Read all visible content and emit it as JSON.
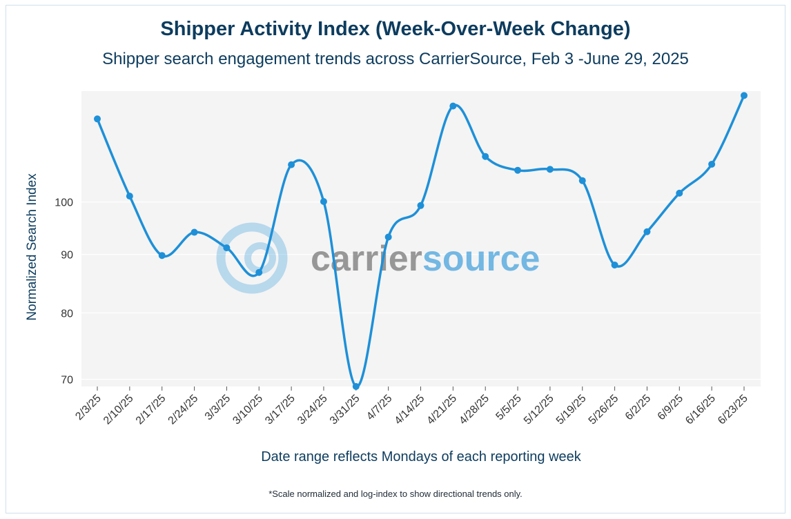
{
  "chart_data": {
    "type": "line",
    "title": "Shipper Activity Index (Week-Over-Week Change)",
    "subtitle": "Shipper search engagement trends across CarrierSource, Feb 3 -June 29, 2025",
    "xlabel": "Date range reflects Mondays of each reporting week",
    "ylabel": "Normalized Search Index",
    "footnote": "*Scale normalized and log-index to show directional trends only.",
    "y_scale": "log",
    "ylim": [
      69,
      125
    ],
    "y_ticks": [
      70,
      80,
      90,
      100
    ],
    "categories": [
      "2/3/25",
      "2/10/25",
      "2/17/25",
      "2/24/25",
      "3/3/25",
      "3/10/25",
      "3/17/25",
      "3/24/25",
      "3/31/25",
      "4/7/25",
      "4/14/25",
      "4/21/25",
      "4/28/25",
      "5/5/25",
      "5/12/25",
      "5/19/25",
      "5/26/25",
      "6/2/25",
      "6/9/25",
      "6/16/25",
      "6/23/25"
    ],
    "series": [
      {
        "name": "Shipper Activity Index",
        "color": "#1e90d8",
        "values": [
          118.2,
          101.2,
          89.8,
          94.1,
          91.2,
          86.8,
          107.8,
          100.1,
          69.0,
          93.2,
          99.3,
          121.3,
          109.6,
          106.6,
          106.8,
          104.4,
          88.1,
          94.2,
          101.8,
          107.9,
          123.9
        ]
      }
    ],
    "watermark": {
      "text_part1": "carrier",
      "text_part2": "source",
      "color_dark": "#5a5a5a",
      "color_accent": "#1e90d8"
    },
    "colors": {
      "plot_bg": "#f4f4f4",
      "grid": "#ffffff",
      "title": "#0d3c5e"
    }
  }
}
